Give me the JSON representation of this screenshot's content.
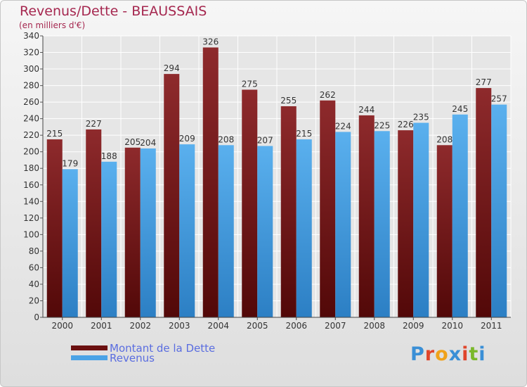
{
  "chart_data": {
    "type": "bar",
    "title": "Revenus/Dette - BEAUSSAIS",
    "subtitle": "(en milliers d'€)",
    "categories": [
      "2000",
      "2001",
      "2002",
      "2003",
      "2004",
      "2005",
      "2006",
      "2007",
      "2008",
      "2009",
      "2010",
      "2011"
    ],
    "series": [
      {
        "name": "Montant de la Dette",
        "color": "#7a1e20",
        "values": [
          215,
          227,
          205,
          294,
          326,
          275,
          255,
          262,
          244,
          226,
          208,
          277
        ]
      },
      {
        "name": "Revenus",
        "color": "#4aa3e6",
        "values": [
          179,
          188,
          204,
          209,
          208,
          207,
          215,
          224,
          225,
          235,
          245,
          257
        ]
      }
    ],
    "ylim": [
      0,
      340
    ],
    "yticks": [
      0,
      20,
      40,
      60,
      80,
      100,
      120,
      140,
      160,
      180,
      200,
      220,
      240,
      260,
      280,
      300,
      320,
      340
    ],
    "grid": true,
    "legend_position": "bottom-left"
  },
  "logo": {
    "text": "Proxiti",
    "colors": [
      "#3a8fd6",
      "#e0452b",
      "#f0a21a",
      "#3a8fd6",
      "#e0452b",
      "#7ab829",
      "#3a8fd6"
    ]
  }
}
